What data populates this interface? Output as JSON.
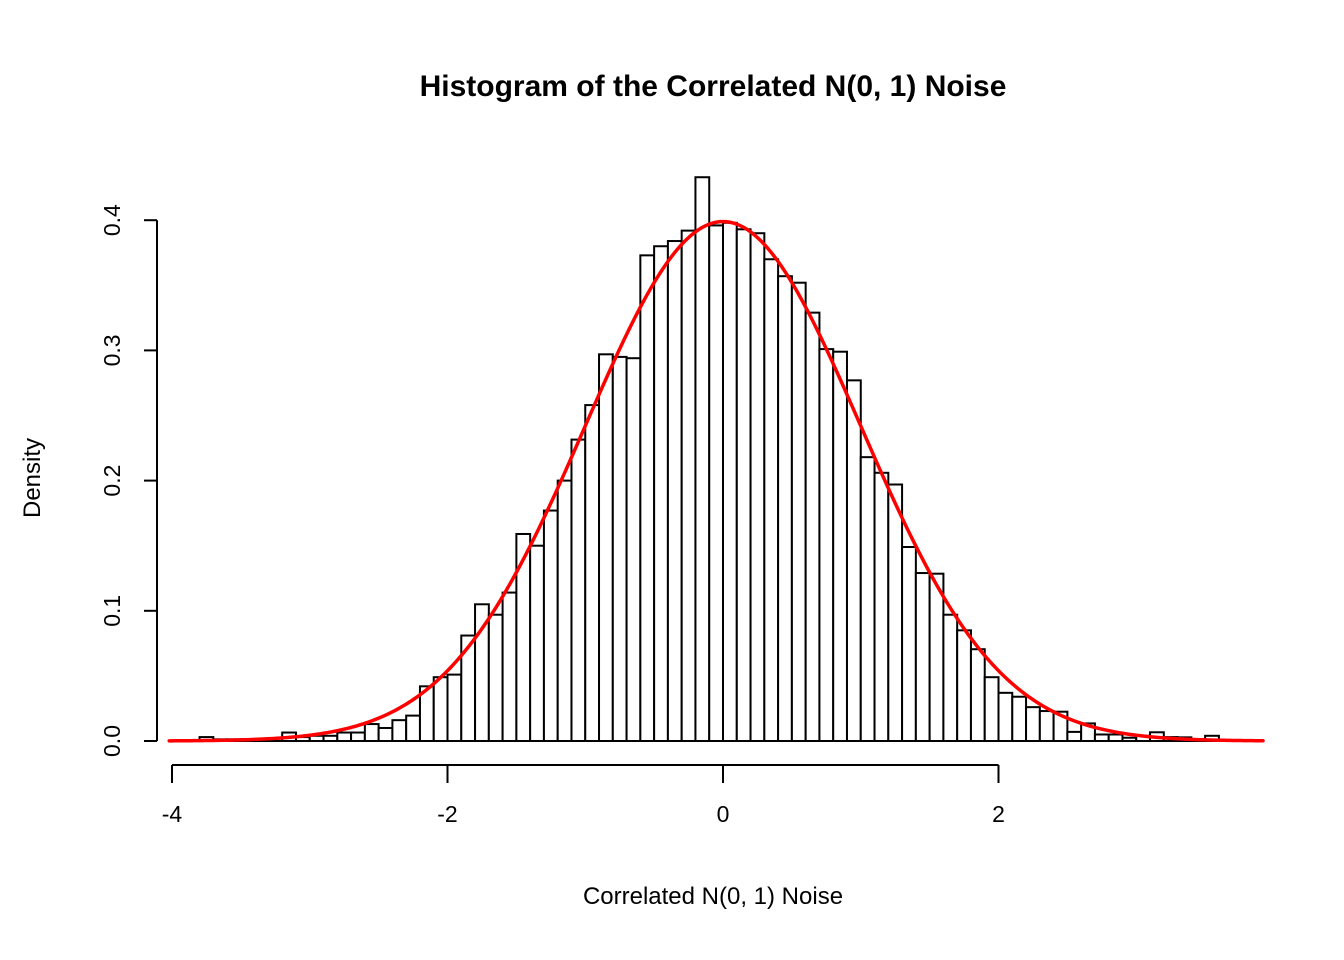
{
  "labels": {
    "title": "Histogram of the Correlated N(0, 1) Noise",
    "xlabel": "Correlated N(0, 1) Noise",
    "ylabel": "Density",
    "x_tick_labels": [
      "-4",
      "-2",
      "0",
      "2"
    ],
    "y_tick_labels": [
      "0.0",
      "0.1",
      "0.2",
      "0.3",
      "0.4"
    ]
  },
  "colors": {
    "background": "#FFFFFF",
    "bar_fill": "#FFFFFF",
    "bar_stroke": "#000000",
    "axis": "#000000",
    "curve": "#FF0000"
  },
  "chart_data": {
    "type": "bar",
    "subtype": "histogram-with-density-curve",
    "title": "Histogram of the Correlated N(0, 1) Noise",
    "xlabel": "Correlated N(0, 1) Noise",
    "ylabel": "Density",
    "grid": false,
    "legend": "none",
    "xlim": [
      -4.1,
      4.0
    ],
    "ylim": [
      0,
      0.44
    ],
    "x_ticks": [
      -4,
      -2,
      0,
      2
    ],
    "y_ticks": [
      0,
      0.1,
      0.2,
      0.3,
      0.4
    ],
    "bin_start": -3.8,
    "bin_width": 0.1,
    "densities": [
      0.003,
      0.0013,
      0.0013,
      0.0013,
      0,
      0,
      0.0065,
      0.003,
      0.004,
      0.004,
      0.0065,
      0.0065,
      0.013,
      0.01,
      0.016,
      0.0195,
      0.042,
      0.049,
      0.051,
      0.081,
      0.105,
      0.097,
      0.114,
      0.159,
      0.15,
      0.177,
      0.2,
      0.2315,
      0.258,
      0.297,
      0.295,
      0.294,
      0.373,
      0.38,
      0.384,
      0.392,
      0.433,
      0.396,
      0.398,
      0.393,
      0.39,
      0.37,
      0.357,
      0.352,
      0.329,
      0.301,
      0.299,
      0.277,
      0.218,
      0.206,
      0.197,
      0.149,
      0.129,
      0.1285,
      0.097,
      0.085,
      0.0705,
      0.049,
      0.037,
      0.034,
      0.026,
      0.023,
      0.0225,
      0.007,
      0.0135,
      0.005,
      0.005,
      0.0025,
      0.004,
      0.0067,
      0.003,
      0.0028,
      0,
      0.004
    ],
    "overlay_curve": {
      "name": "standard-normal-density",
      "formula": "y = exp(-x^2/2)/sqrt(2*pi)",
      "mean": 0,
      "sd": 1,
      "peak": 0.3989,
      "x_range": [
        -4.02,
        3.93
      ],
      "color": "#FF0000"
    }
  }
}
